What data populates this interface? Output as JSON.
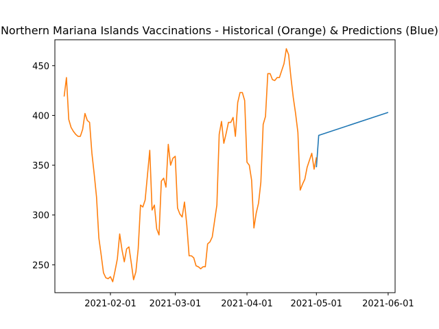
{
  "chart_data": {
    "type": "line",
    "title": "Northern Mariana Islands Vaccinations - Historical (Orange) & Predictions (Blue)",
    "xlabel": "",
    "ylabel": "",
    "x_type": "date",
    "xlim": [
      "2021-01-08",
      "2021-06-04"
    ],
    "ylim": [
      222,
      476
    ],
    "x_ticks": [
      "2021-02-01",
      "2021-03-01",
      "2021-04-01",
      "2021-05-01",
      "2021-06-01"
    ],
    "y_ticks": [
      250,
      300,
      350,
      400,
      450
    ],
    "grid": false,
    "legend": "none",
    "series": [
      {
        "color": "#1f77b4",
        "points": [
          [
            "2021-05-01",
            348
          ],
          [
            "2021-05-02",
            380
          ],
          [
            "2021-06-01",
            403
          ]
        ]
      },
      {
        "color": "#ff7f0e",
        "points": [
          [
            "2021-01-12",
            419
          ],
          [
            "2021-01-13",
            438
          ],
          [
            "2021-01-14",
            396
          ],
          [
            "2021-01-15",
            388
          ],
          [
            "2021-01-16",
            384
          ],
          [
            "2021-01-17",
            381
          ],
          [
            "2021-01-18",
            379
          ],
          [
            "2021-01-19",
            379
          ],
          [
            "2021-01-20",
            386
          ],
          [
            "2021-01-21",
            402
          ],
          [
            "2021-01-22",
            395
          ],
          [
            "2021-01-23",
            393
          ],
          [
            "2021-01-24",
            362
          ],
          [
            "2021-01-25",
            341
          ],
          [
            "2021-01-26",
            318
          ],
          [
            "2021-01-27",
            277
          ],
          [
            "2021-01-28",
            260
          ],
          [
            "2021-01-29",
            242
          ],
          [
            "2021-01-30",
            237
          ],
          [
            "2021-01-31",
            236
          ],
          [
            "2021-02-01",
            238
          ],
          [
            "2021-02-02",
            233
          ],
          [
            "2021-02-03",
            244
          ],
          [
            "2021-02-04",
            256
          ],
          [
            "2021-02-05",
            281
          ],
          [
            "2021-02-06",
            265
          ],
          [
            "2021-02-07",
            253
          ],
          [
            "2021-02-08",
            266
          ],
          [
            "2021-02-09",
            268
          ],
          [
            "2021-02-10",
            252
          ],
          [
            "2021-02-11",
            235
          ],
          [
            "2021-02-12",
            243
          ],
          [
            "2021-02-13",
            266
          ],
          [
            "2021-02-14",
            310
          ],
          [
            "2021-02-15",
            308
          ],
          [
            "2021-02-16",
            315
          ],
          [
            "2021-02-17",
            340
          ],
          [
            "2021-02-18",
            365
          ],
          [
            "2021-02-19",
            305
          ],
          [
            "2021-02-20",
            310
          ],
          [
            "2021-02-21",
            286
          ],
          [
            "2021-02-22",
            280
          ],
          [
            "2021-02-23",
            334
          ],
          [
            "2021-02-24",
            337
          ],
          [
            "2021-02-25",
            328
          ],
          [
            "2021-02-26",
            371
          ],
          [
            "2021-02-27",
            350
          ],
          [
            "2021-02-28",
            357
          ],
          [
            "2021-03-01",
            359
          ],
          [
            "2021-03-02",
            307
          ],
          [
            "2021-03-03",
            301
          ],
          [
            "2021-03-04",
            298
          ],
          [
            "2021-03-05",
            313
          ],
          [
            "2021-03-06",
            290
          ],
          [
            "2021-03-07",
            259
          ],
          [
            "2021-03-08",
            259
          ],
          [
            "2021-03-09",
            257
          ],
          [
            "2021-03-10",
            249
          ],
          [
            "2021-03-11",
            248
          ],
          [
            "2021-03-12",
            246
          ],
          [
            "2021-03-13",
            248
          ],
          [
            "2021-03-14",
            248
          ],
          [
            "2021-03-15",
            271
          ],
          [
            "2021-03-16",
            273
          ],
          [
            "2021-03-17",
            278
          ],
          [
            "2021-03-18",
            294
          ],
          [
            "2021-03-19",
            310
          ],
          [
            "2021-03-20",
            381
          ],
          [
            "2021-03-21",
            394
          ],
          [
            "2021-03-22",
            372
          ],
          [
            "2021-03-23",
            382
          ],
          [
            "2021-03-24",
            393
          ],
          [
            "2021-03-25",
            393
          ],
          [
            "2021-03-26",
            398
          ],
          [
            "2021-03-27",
            379
          ],
          [
            "2021-03-28",
            413
          ],
          [
            "2021-03-29",
            423
          ],
          [
            "2021-03-30",
            423
          ],
          [
            "2021-03-31",
            415
          ],
          [
            "2021-04-01",
            353
          ],
          [
            "2021-04-02",
            350
          ],
          [
            "2021-04-03",
            335
          ],
          [
            "2021-04-04",
            287
          ],
          [
            "2021-04-05",
            302
          ],
          [
            "2021-04-06",
            312
          ],
          [
            "2021-04-07",
            333
          ],
          [
            "2021-04-08",
            391
          ],
          [
            "2021-04-09",
            399
          ],
          [
            "2021-04-10",
            442
          ],
          [
            "2021-04-11",
            442
          ],
          [
            "2021-04-12",
            436
          ],
          [
            "2021-04-13",
            435
          ],
          [
            "2021-04-14",
            438
          ],
          [
            "2021-04-15",
            438
          ],
          [
            "2021-04-16",
            445
          ],
          [
            "2021-04-17",
            452
          ],
          [
            "2021-04-18",
            467
          ],
          [
            "2021-04-19",
            461
          ],
          [
            "2021-04-20",
            438
          ],
          [
            "2021-04-21",
            418
          ],
          [
            "2021-04-22",
            402
          ],
          [
            "2021-04-23",
            383
          ],
          [
            "2021-04-24",
            325
          ],
          [
            "2021-04-25",
            331
          ],
          [
            "2021-04-26",
            336
          ],
          [
            "2021-04-27",
            348
          ],
          [
            "2021-04-28",
            355
          ],
          [
            "2021-04-29",
            362
          ],
          [
            "2021-04-30",
            346
          ],
          [
            "2021-05-01",
            358
          ]
        ]
      }
    ]
  }
}
